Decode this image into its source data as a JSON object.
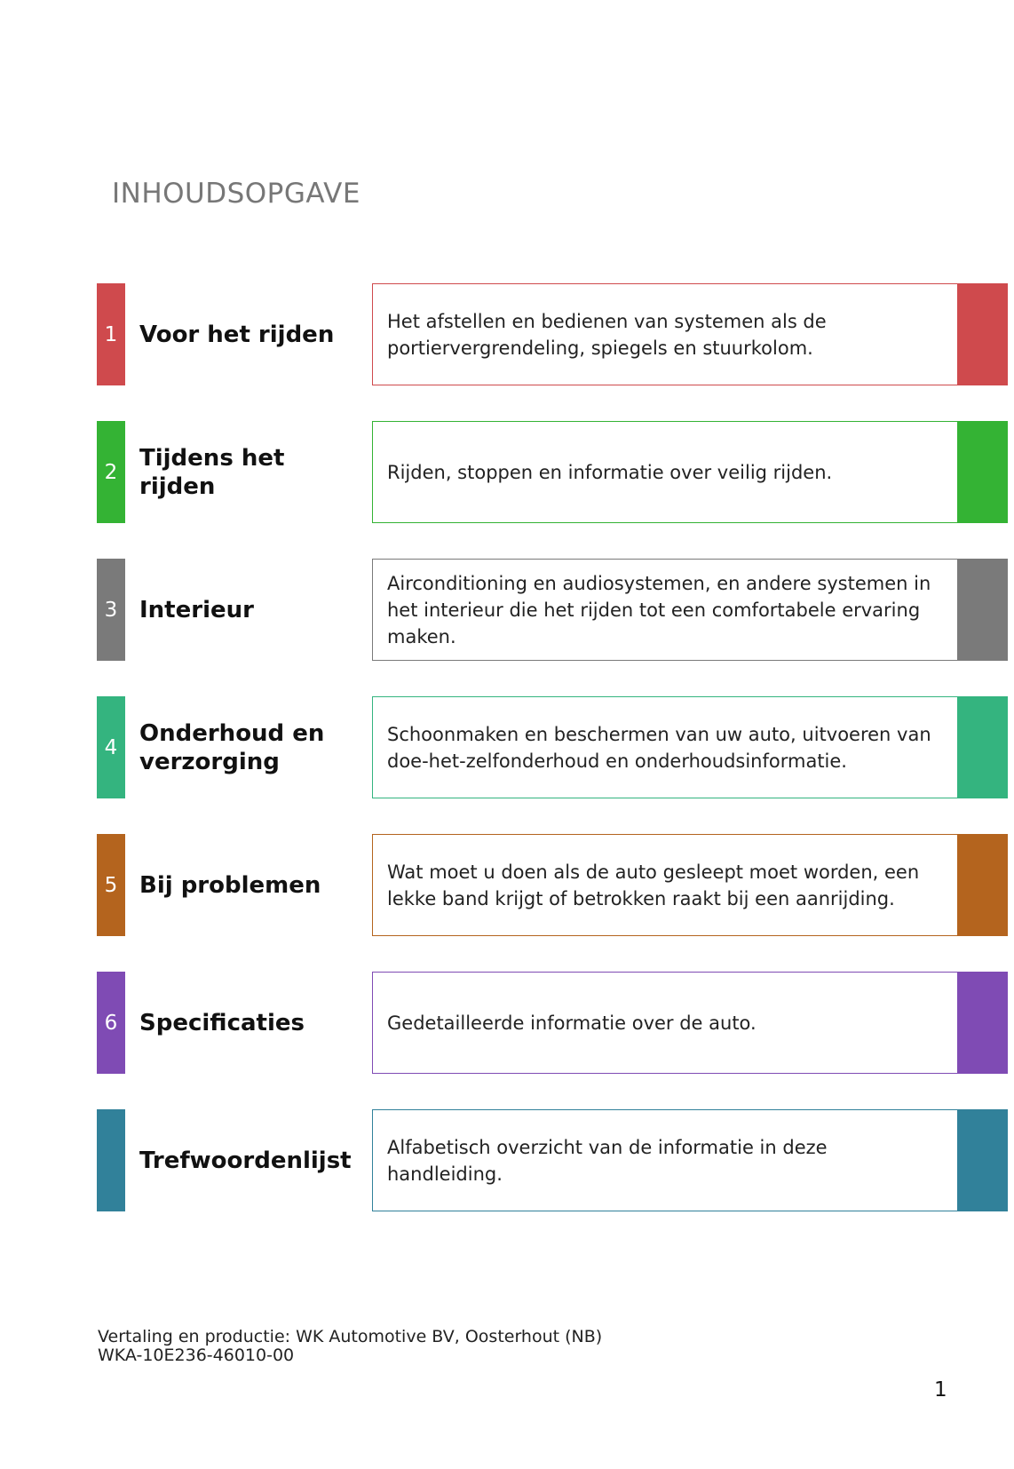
{
  "header": {
    "title": "INHOUDSOPGAVE"
  },
  "sections": [
    {
      "number": "1",
      "name": "Voor het rijden",
      "description": "Het afstellen en bedienen van systemen als de portiervergrendeling, spiegels en stuurkolom."
    },
    {
      "number": "2",
      "name": "Tijdens het rijden",
      "description": "Rijden, stoppen en informatie over veilig rijden."
    },
    {
      "number": "3",
      "name": "Interieur",
      "description": "Airconditioning en audiosystemen, en andere systemen in het interieur die het rijden tot een comfortabele ervaring maken."
    },
    {
      "number": "4",
      "name": "Onderhoud en verzorging",
      "description": "Schoonmaken en beschermen van uw auto, uitvoeren van doe-het-zelfonderhoud en onderhoudsinformatie."
    },
    {
      "number": "5",
      "name": "Bij problemen",
      "description": "Wat moet u doen als de auto gesleept moet worden, een lekke band krijgt of betrokken raakt bij een aanrijding."
    },
    {
      "number": "6",
      "name": "Specificaties",
      "description": "Gedetailleerde informatie over de auto."
    },
    {
      "name": "Trefwoordenlijst",
      "description": "Alfabetisch overzicht van de informatie in deze handleiding."
    }
  ],
  "footer": {
    "credit": "Vertaling en productie: WK Automotive BV, Oosterhout (NB)",
    "code": "WKA-10E236-46010-00",
    "page_number": "1"
  }
}
